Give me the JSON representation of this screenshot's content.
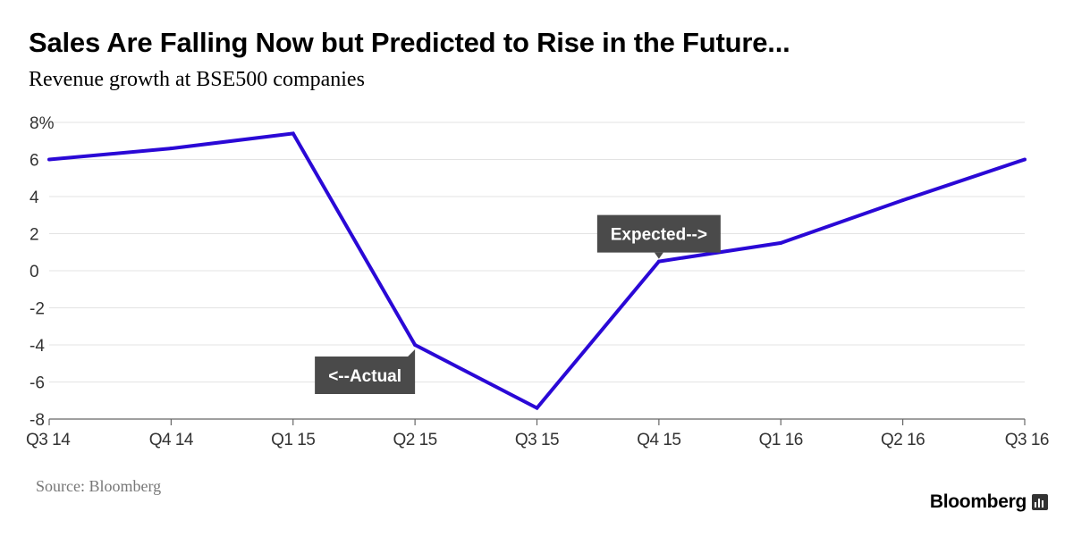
{
  "header": {
    "title": "Sales Are Falling Now but Predicted to Rise in the Future...",
    "subtitle": "Revenue growth at BSE500 companies"
  },
  "footer": {
    "source": "Source: Bloomberg",
    "brand": "Bloomberg",
    "brand_icon": "bloomberg-bars-icon"
  },
  "colors": {
    "line": "#2a08d6",
    "grid": "#e3e3e3",
    "axis": "#666666",
    "annotation_bg": "#4a4a4a",
    "annotation_text": "#ffffff"
  },
  "chart_data": {
    "type": "line",
    "title": "Sales Are Falling Now but Predicted to Rise in the Future...",
    "subtitle": "Revenue growth at BSE500 companies",
    "xlabel": "",
    "ylabel": "",
    "categories": [
      "Q3 14",
      "Q4 14",
      "Q1 15",
      "Q2 15",
      "Q3 15",
      "Q4 15",
      "Q1 16",
      "Q2 16",
      "Q3 16"
    ],
    "series": [
      {
        "values": [
          6.0,
          6.6,
          7.4,
          -4.0,
          -7.4,
          0.5,
          1.5,
          3.8,
          6.0
        ]
      }
    ],
    "ylim": [
      -8,
      8
    ],
    "yticks": [
      -8,
      -6,
      -4,
      -2,
      0,
      2,
      4,
      6,
      8
    ],
    "ytick_labels": [
      "-8",
      "-6",
      "-4",
      "-2",
      "0",
      "2",
      "4",
      "6",
      "8%"
    ],
    "grid": true,
    "annotations": [
      {
        "text": "<--Actual",
        "category": "Q2 15",
        "value": -4.0,
        "placement": "below-left"
      },
      {
        "text": "Expected-->",
        "category": "Q4 15",
        "value": 0.5,
        "placement": "above"
      }
    ]
  }
}
